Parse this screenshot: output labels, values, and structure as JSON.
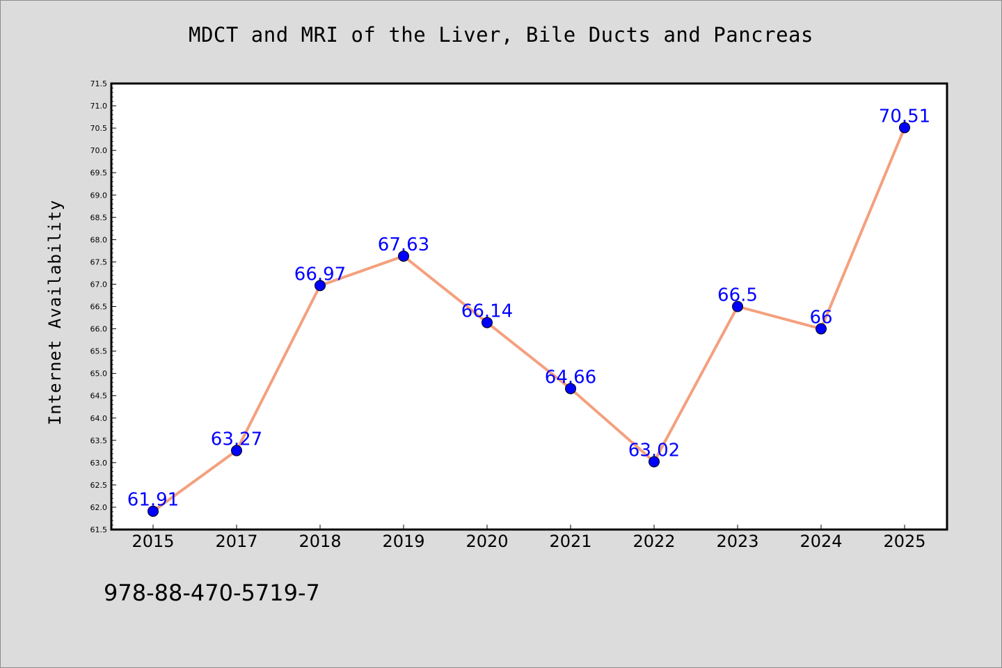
{
  "chart_data": {
    "type": "line",
    "title": "MDCT and MRI of the Liver, Bile Ducts and Pancreas",
    "xlabel": "",
    "ylabel": "Internet Availability",
    "categories": [
      "2015",
      "2017",
      "2018",
      "2019",
      "2020",
      "2021",
      "2022",
      "2023",
      "2024",
      "2025"
    ],
    "series": [
      {
        "values": [
          61.91,
          63.27,
          66.97,
          67.63,
          66.14,
          64.66,
          63.02,
          66.5,
          66,
          70.51
        ],
        "data_labels": [
          "61.91",
          "63.27",
          "66.97",
          "67.63",
          "66.14",
          "64.66",
          "63.02",
          "66.5",
          "66",
          "70.51"
        ],
        "line_color": "#f4a07e",
        "marker_color": "#0000ff"
      }
    ],
    "ylim": [
      61.5,
      71.5
    ],
    "yticks": [
      "61.5",
      "62.0",
      "62.5",
      "63.0",
      "63.5",
      "64.0",
      "64.5",
      "65.0",
      "65.5",
      "66.0",
      "66.5",
      "67.0",
      "67.5",
      "68.0",
      "68.5",
      "69.0",
      "69.5",
      "70.0",
      "70.5",
      "71.0",
      "71.5"
    ],
    "grid": false,
    "legend": "none",
    "background_color": "#dcdcdc",
    "plot_background": "#ffffff"
  },
  "footer_text": "978-88-470-5719-7"
}
